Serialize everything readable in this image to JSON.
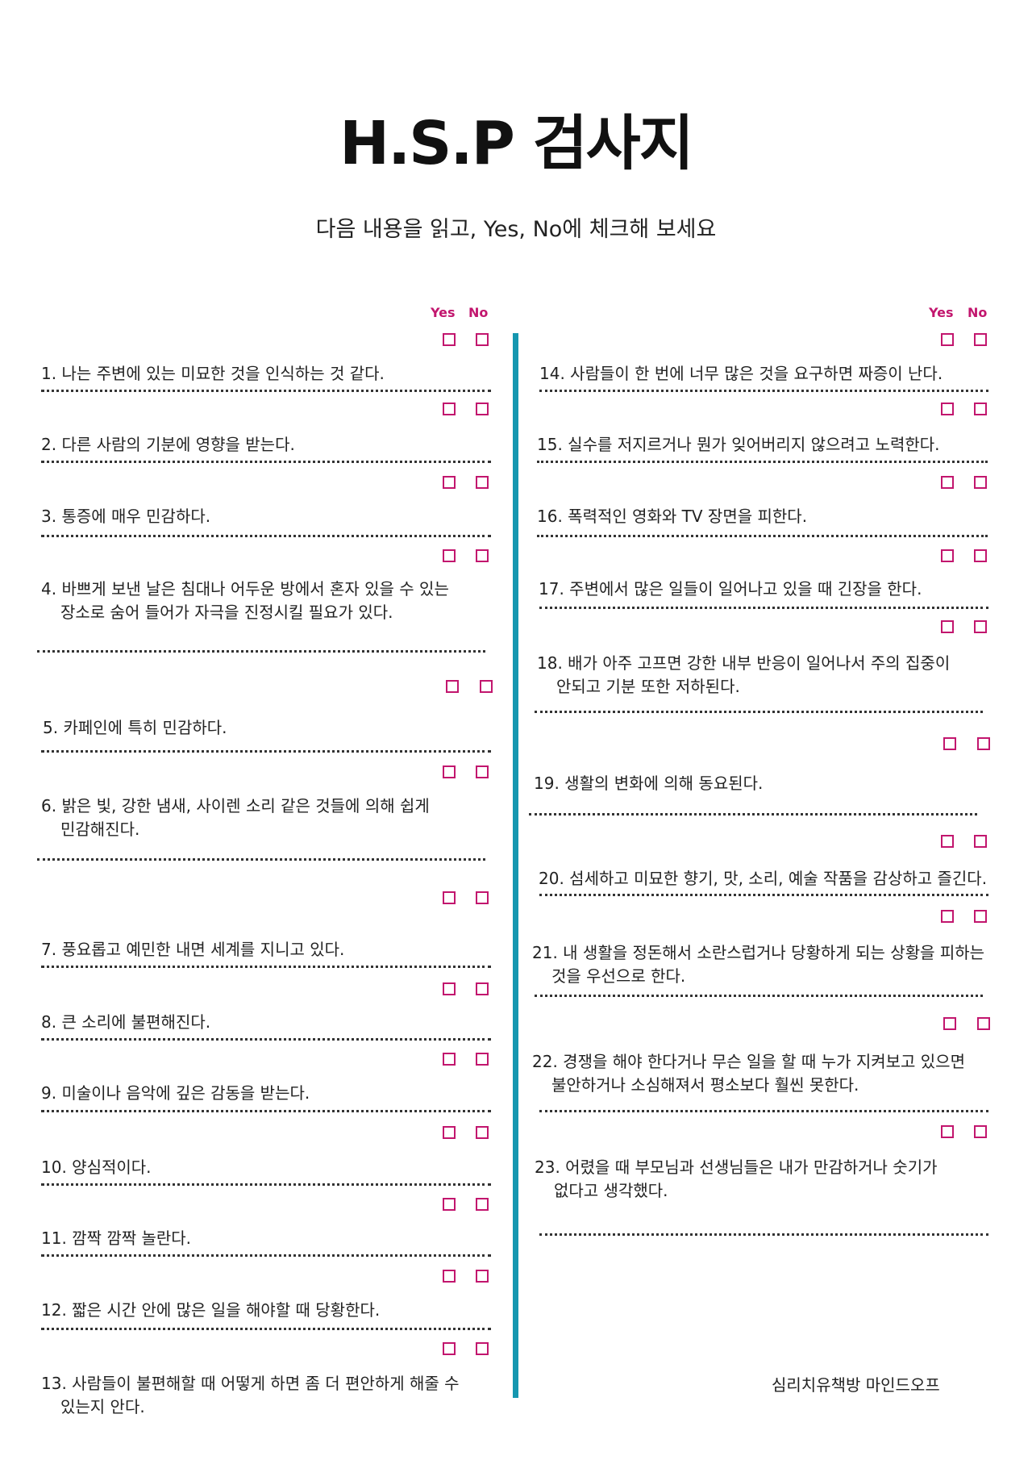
{
  "title": "H.S.P 검사지",
  "subtitle": "다음 내용을 읽고, Yes, No에 체크해 보세요",
  "header": {
    "yes": "Yes",
    "no": "No"
  },
  "colors": {
    "accent": "#c2166e",
    "divider": "#1597b0"
  },
  "questions": [
    {
      "lines": [
        "1. 나는 주변에 있는 미묘한 것을 인식하는 것 같다."
      ]
    },
    {
      "lines": [
        "2. 다른 사람의 기분에 영향을 받는다."
      ]
    },
    {
      "lines": [
        "3. 통증에 매우 민감하다."
      ]
    },
    {
      "lines": [
        "4. 바쁘게 보낸 날은 침대나 어두운 방에서 혼자 있을 수 있는",
        "장소로  숨어 들어가 자극을 진정시킬 필요가 있다."
      ]
    },
    {
      "lines": [
        "5. 카페인에 특히 민감하다."
      ]
    },
    {
      "lines": [
        "6. 밝은 빛, 강한 냄새, 사이렌 소리 같은 것들에 의해 쉽게",
        "민감해진다."
      ]
    },
    {
      "lines": [
        "7. 풍요롭고 예민한 내면 세계를 지니고 있다."
      ]
    },
    {
      "lines": [
        "8. 큰 소리에 불편해진다."
      ]
    },
    {
      "lines": [
        "9. 미술이나 음악에 깊은 감동을 받는다."
      ]
    },
    {
      "lines": [
        "10. 양심적이다."
      ]
    },
    {
      "lines": [
        "11. 깜짝 깜짝 놀란다."
      ]
    },
    {
      "lines": [
        "12. 짧은 시간 안에 많은 일을 해야할 때 당황한다."
      ]
    },
    {
      "lines": [
        "13. 사람들이 불편해할 때 어떻게 하면 좀 더 편안하게 해줄 수",
        "있는지 안다."
      ]
    },
    {
      "lines": [
        "14. 사람들이 한 번에 너무 많은 것을 요구하면 짜증이 난다."
      ]
    },
    {
      "lines": [
        "15. 실수를 저지르거나 뭔가 잊어버리지 않으려고 노력한다."
      ]
    },
    {
      "lines": [
        "16. 폭력적인 영화와 TV 장면을 피한다."
      ]
    },
    {
      "lines": [
        "17. 주변에서 많은 일들이 일어나고 있을 때 긴장을 한다."
      ]
    },
    {
      "lines": [
        "18. 배가 아주 고프면 강한 내부 반응이 일어나서 주의 집중이",
        "안되고 기분 또한 저하된다."
      ]
    },
    {
      "lines": [
        "19. 생활의 변화에 의해 동요된다."
      ]
    },
    {
      "lines": [
        "20. 섬세하고 미묘한 향기, 맛, 소리, 예술 작품을 감상하고 즐긴다."
      ]
    },
    {
      "lines": [
        "21. 내 생활을 정돈해서 소란스럽거나 당황하게 되는 상황을 피하는",
        "것을 우선으로 한다."
      ]
    },
    {
      "lines": [
        "22. 경쟁을 해야 한다거나 무슨 일을 할 때 누가 지켜보고 있으면",
        "불안하거나 소심해져서 평소보다 훨씬 못한다."
      ]
    },
    {
      "lines": [
        "23. 어렸을 때 부모님과 선생님들은 내가 만감하거나 숫기가",
        "없다고 생각했다."
      ]
    }
  ],
  "footer": "심리치유책방 마인드오프"
}
